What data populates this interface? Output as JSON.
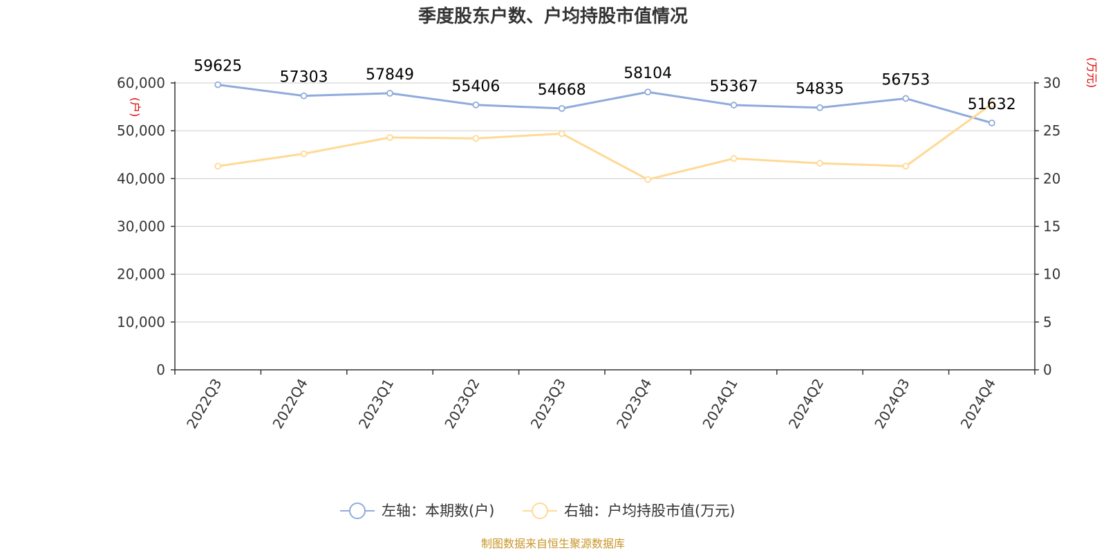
{
  "title": "季度股东户数、户均持股市值情况",
  "source": "制图数据来自恒生聚源数据库",
  "colors": {
    "left_series": "#8faadc",
    "right_series": "#ffd995",
    "grid": "#cccccc",
    "axis": "#333333",
    "unit": "#e00000",
    "source": "#c8962a"
  },
  "chart_data": {
    "type": "line",
    "title": "季度股东户数、户均持股市值情况",
    "categories": [
      "2022Q3",
      "2022Q4",
      "2023Q1",
      "2023Q2",
      "2023Q3",
      "2023Q4",
      "2024Q1",
      "2024Q2",
      "2024Q3",
      "2024Q4"
    ],
    "left_axis": {
      "unit": "(户)",
      "ylim": [
        0,
        60000
      ],
      "ticks": [
        "0",
        "10,000",
        "20,000",
        "30,000",
        "40,000",
        "50,000",
        "60,000"
      ],
      "tick_values": [
        0,
        10000,
        20000,
        30000,
        40000,
        50000,
        60000
      ]
    },
    "right_axis": {
      "unit": "(万元)",
      "ylim": [
        0,
        30
      ],
      "ticks": [
        "0",
        "5",
        "10",
        "15",
        "20",
        "25",
        "30"
      ],
      "tick_values": [
        0,
        5,
        10,
        15,
        20,
        25,
        30
      ]
    },
    "series": [
      {
        "name": "左轴：本期数(户)",
        "axis": "left",
        "values": [
          59625,
          57303,
          57849,
          55406,
          54668,
          58104,
          55367,
          54835,
          56753,
          51632
        ],
        "labels": [
          "59625",
          "57303",
          "57849",
          "55406",
          "54668",
          "58104",
          "55367",
          "54835",
          "56753",
          "51632"
        ]
      },
      {
        "name": "右轴：户均持股市值(万元)",
        "axis": "right",
        "values": [
          21.3,
          22.6,
          24.3,
          24.2,
          24.7,
          19.9,
          22.1,
          21.6,
          21.3,
          27.8
        ]
      }
    ],
    "grid": true,
    "legend_position": "bottom-center"
  }
}
